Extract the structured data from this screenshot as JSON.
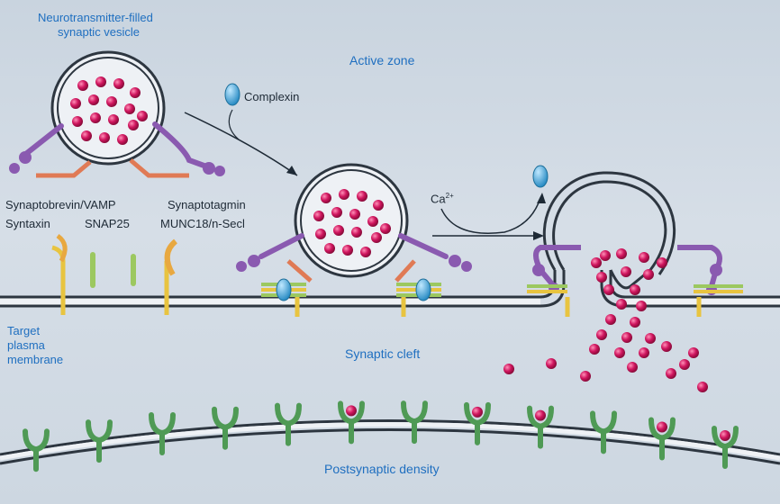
{
  "labels": {
    "vesicle_title_line1": "Neurotransmitter-filled",
    "vesicle_title_line2": "synaptic vesicle",
    "active_zone": "Active zone",
    "complexin": "Complexin",
    "synaptobrevin": "Synaptobrevin/VAMP",
    "synaptotagmin": "Synaptotagmin",
    "syntaxin": "Syntaxin",
    "snap25": "SNAP25",
    "munc18": "MUNC18/n-Secl",
    "calcium": "Ca",
    "calcium_sup": "2+",
    "target_line1": "Target",
    "target_line2": "plasma",
    "target_line3": "membrane",
    "synaptic_cleft": "Synaptic cleft",
    "postsynaptic_density": "Postsynaptic density"
  },
  "colors": {
    "membrane": "#2d3640",
    "vesicle_fill": "#eef1f5",
    "neurotransmitter": "#d0165f",
    "synaptotagmin": "#8a5ab0",
    "synaptobrevin": "#e07a55",
    "syntaxin": "#e8c440",
    "snap25": "#9cc860",
    "complexin": "#4aa8d8",
    "receptor": "#4f9a55",
    "label_blue": "#1f6fc0"
  }
}
